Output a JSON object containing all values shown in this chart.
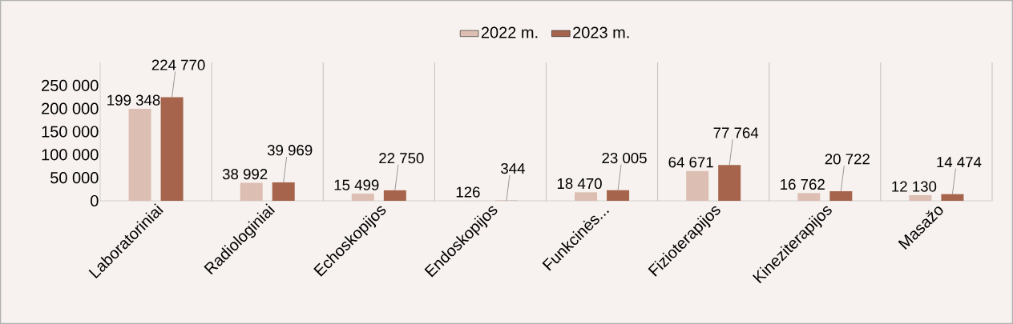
{
  "chart_data": {
    "type": "bar",
    "categories": [
      "Laboratoriniai",
      "Radiologiniai",
      "Echoskopijos",
      "Endoskopijos",
      "Funkcinės...",
      "Fizioterapijos",
      "Kineziterapijos",
      "Masažo"
    ],
    "series": [
      {
        "name": "2022 m.",
        "color": "#dcbfb2",
        "values": [
          199348,
          38992,
          15499,
          126,
          18470,
          64671,
          16762,
          12130
        ],
        "value_labels": [
          "199 348",
          "38 992",
          "15 499",
          "126",
          "18 470",
          "64 671",
          "16 762",
          "12 130"
        ]
      },
      {
        "name": "2023 m.",
        "color": "#a5644b",
        "values": [
          224770,
          39969,
          22750,
          344,
          23005,
          77764,
          20722,
          14474
        ],
        "value_labels": [
          "224 770",
          "39 969",
          "22 750",
          "344",
          "23 005",
          "77 764",
          "20 722",
          "14 474"
        ]
      }
    ],
    "ylim": [
      0,
      300000
    ],
    "yticks": [
      {
        "value": 0,
        "label": "0"
      },
      {
        "value": 50000,
        "label": "50 000"
      },
      {
        "value": 100000,
        "label": "100 000"
      },
      {
        "value": 150000,
        "label": "150 000"
      },
      {
        "value": 200000,
        "label": "200 000"
      },
      {
        "value": 250000,
        "label": "250 000"
      }
    ],
    "grid": "x",
    "legend": "top"
  }
}
